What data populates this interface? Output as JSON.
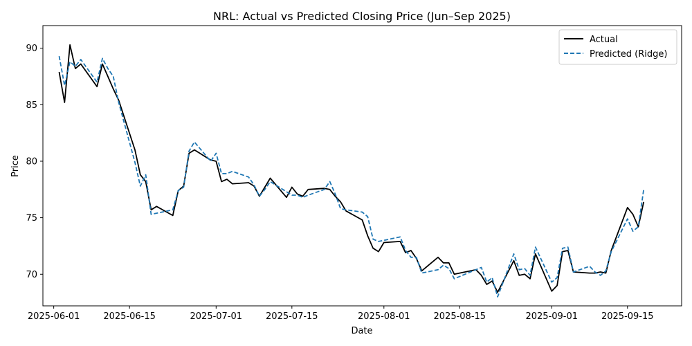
{
  "chart_data": {
    "type": "line",
    "title": "NRL: Actual vs Predicted Closing Price (Jun–Sep 2025)",
    "xlabel": "Date",
    "ylabel": "Price",
    "xlim": [
      "2025-05-30",
      "2025-09-25"
    ],
    "ylim": [
      67.2,
      92.0
    ],
    "x_ticks": [
      "2025-06-01",
      "2025-06-15",
      "2025-07-01",
      "2025-07-15",
      "2025-08-01",
      "2025-08-15",
      "2025-09-01",
      "2025-09-15"
    ],
    "y_ticks": [
      70,
      75,
      80,
      85,
      90
    ],
    "grid": false,
    "legend_position": "top-right",
    "dates": [
      "2025-06-02",
      "2025-06-03",
      "2025-06-04",
      "2025-06-05",
      "2025-06-06",
      "2025-06-09",
      "2025-06-10",
      "2025-06-11",
      "2025-06-12",
      "2025-06-13",
      "2025-06-16",
      "2025-06-17",
      "2025-06-18",
      "2025-06-19",
      "2025-06-20",
      "2025-06-23",
      "2025-06-24",
      "2025-06-25",
      "2025-06-26",
      "2025-06-27",
      "2025-06-30",
      "2025-07-01",
      "2025-07-02",
      "2025-07-03",
      "2025-07-04",
      "2025-07-07",
      "2025-07-08",
      "2025-07-09",
      "2025-07-10",
      "2025-07-11",
      "2025-07-14",
      "2025-07-15",
      "2025-07-16",
      "2025-07-17",
      "2025-07-18",
      "2025-07-21",
      "2025-07-22",
      "2025-07-23",
      "2025-07-24",
      "2025-07-25",
      "2025-07-28",
      "2025-07-29",
      "2025-07-30",
      "2025-07-31",
      "2025-08-01",
      "2025-08-04",
      "2025-08-05",
      "2025-08-06",
      "2025-08-07",
      "2025-08-08",
      "2025-08-11",
      "2025-08-12",
      "2025-08-13",
      "2025-08-14",
      "2025-08-18",
      "2025-08-19",
      "2025-08-20",
      "2025-08-21",
      "2025-08-22",
      "2025-08-25",
      "2025-08-26",
      "2025-08-27",
      "2025-08-28",
      "2025-08-29",
      "2025-09-01",
      "2025-09-02",
      "2025-09-03",
      "2025-09-04",
      "2025-09-05",
      "2025-09-08",
      "2025-09-09",
      "2025-09-10",
      "2025-09-11",
      "2025-09-12",
      "2025-09-15",
      "2025-09-16",
      "2025-09-17",
      "2025-09-18"
    ],
    "series": [
      {
        "name": "Actual",
        "color": "#000000",
        "dash": "solid",
        "values": [
          87.9,
          85.2,
          90.3,
          88.2,
          88.6,
          86.6,
          88.6,
          87.5,
          86.4,
          85.4,
          81.0,
          78.8,
          78.2,
          75.7,
          76.0,
          75.2,
          77.4,
          77.8,
          80.7,
          81.0,
          80.1,
          80.0,
          78.2,
          78.4,
          78.0,
          78.1,
          77.8,
          76.9,
          77.7,
          78.5,
          76.8,
          77.7,
          77.1,
          76.9,
          77.5,
          77.6,
          77.5,
          76.9,
          76.4,
          75.6,
          74.8,
          73.4,
          72.3,
          72.0,
          72.8,
          72.9,
          71.9,
          72.1,
          71.4,
          70.3,
          71.5,
          71.0,
          71.0,
          70.0,
          70.4,
          69.9,
          69.1,
          69.4,
          68.4,
          71.2,
          69.9,
          70.0,
          69.6,
          71.8,
          68.5,
          69.0,
          72.0,
          72.1,
          70.2,
          70.1,
          70.1,
          70.2,
          70.1,
          72.1,
          75.9,
          75.3,
          74.2,
          76.4
        ]
      },
      {
        "name": "Predicted (Ridge)",
        "color": "#1f77b4",
        "dash": "dashed",
        "values": [
          89.3,
          86.7,
          88.8,
          88.4,
          89.0,
          87.0,
          89.1,
          88.2,
          87.5,
          85.2,
          79.9,
          77.8,
          78.8,
          75.3,
          75.4,
          75.7,
          77.4,
          77.7,
          80.9,
          81.7,
          80.0,
          80.7,
          78.9,
          78.9,
          79.1,
          78.6,
          77.9,
          76.9,
          77.5,
          78.2,
          77.3,
          77.0,
          77.0,
          76.8,
          77.0,
          77.5,
          78.2,
          77.1,
          75.8,
          75.7,
          75.5,
          75.1,
          73.1,
          72.9,
          73.0,
          73.3,
          72.1,
          71.5,
          71.5,
          70.1,
          70.4,
          70.8,
          70.5,
          69.6,
          70.4,
          70.6,
          69.3,
          69.7,
          68.0,
          71.8,
          70.4,
          70.5,
          69.9,
          72.4,
          69.3,
          69.7,
          72.3,
          72.4,
          70.2,
          70.7,
          70.2,
          69.9,
          70.3,
          72.0,
          74.9,
          73.8,
          74.2,
          77.5
        ]
      }
    ]
  }
}
